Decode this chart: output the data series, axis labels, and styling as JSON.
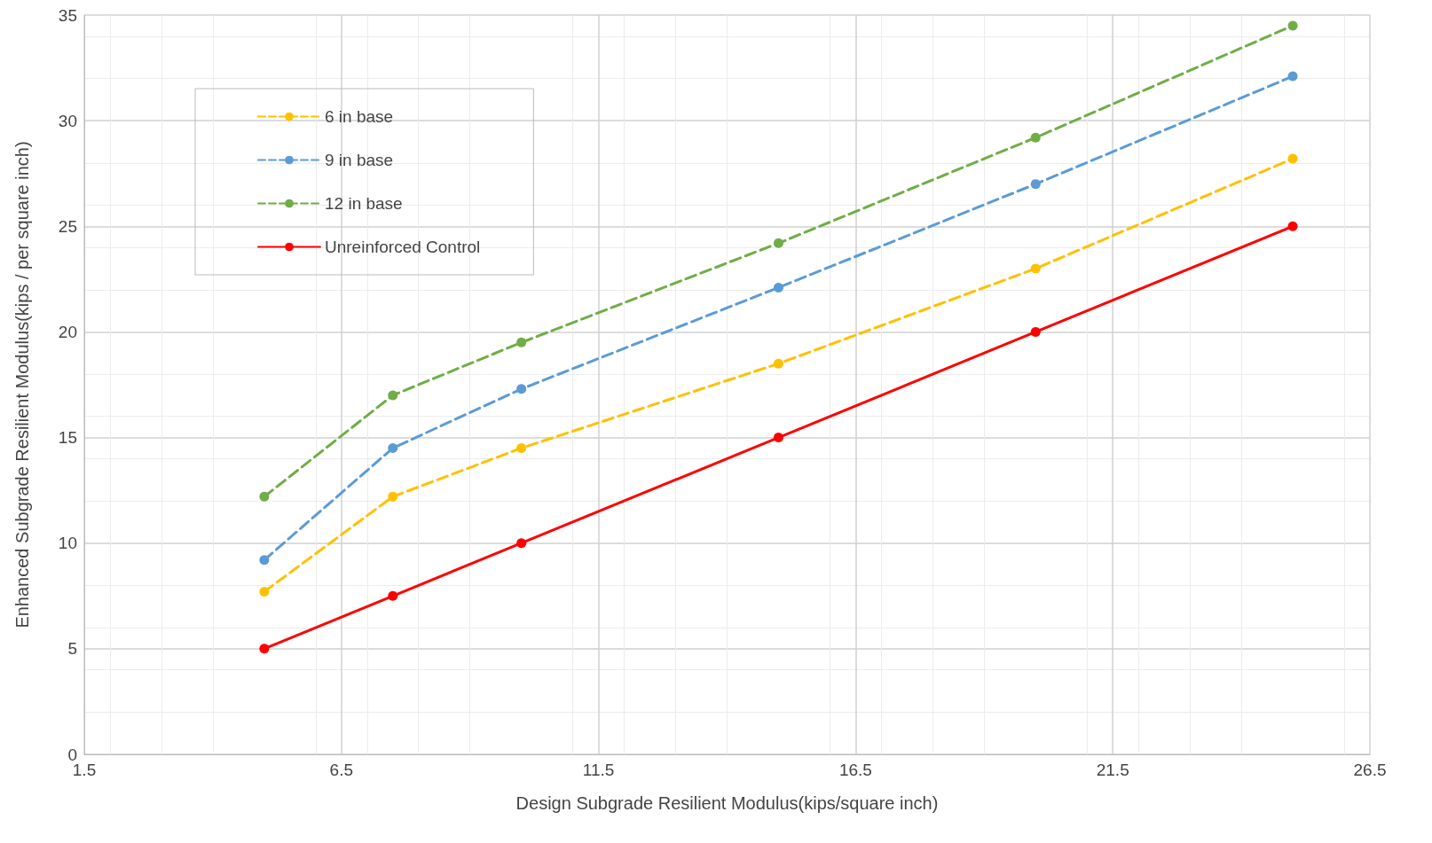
{
  "chart_data": {
    "type": "line",
    "xlabel": "Design Subgrade Resilient Modulus(kips/square inch)",
    "ylabel": "Enhanced Subgrade Resilient Modulus(kips / per square inch)",
    "x": [
      5,
      7.5,
      10,
      15,
      20,
      25
    ],
    "series": [
      {
        "name": "6 in base",
        "color": "#ffc000",
        "line_style": "dashed",
        "values": [
          7.7,
          12.2,
          14.5,
          18.5,
          23.0,
          28.2
        ]
      },
      {
        "name": "9 in base",
        "color": "#5b9bd5",
        "line_style": "dashed",
        "values": [
          9.2,
          14.5,
          17.3,
          22.1,
          27.0,
          32.1
        ]
      },
      {
        "name": "12 in base",
        "color": "#70ad47",
        "line_style": "dashed",
        "values": [
          12.2,
          17.0,
          19.5,
          24.2,
          29.2,
          34.5
        ]
      },
      {
        "name": "Unreinforced Control",
        "color": "#ff0000",
        "line_style": "solid",
        "values": [
          5,
          7.5,
          10,
          15,
          20,
          25
        ]
      }
    ],
    "xlim": [
      1.5,
      26.5
    ],
    "xticks": [
      1.5,
      6.5,
      11.5,
      16.5,
      21.5,
      26.5
    ],
    "ylim": [
      0,
      35
    ],
    "yticks": [
      0,
      5,
      10,
      15,
      20,
      25,
      30,
      35
    ],
    "grid": true,
    "legend": "top left",
    "marker": "circle"
  }
}
